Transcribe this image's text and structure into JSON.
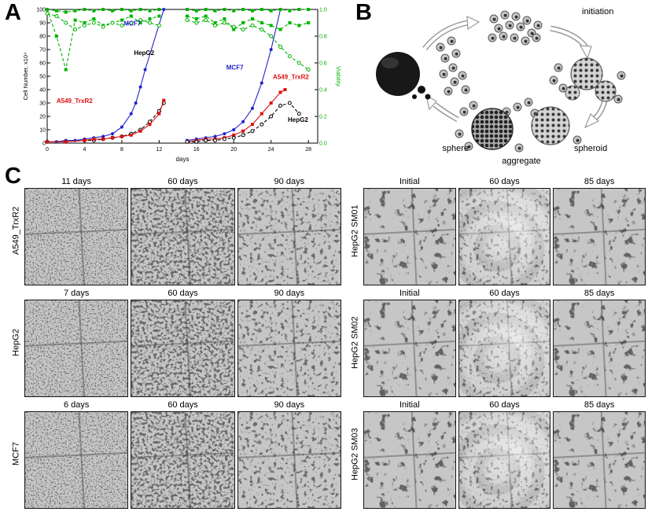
{
  "panels": {
    "a_label": "A",
    "b_label": "B",
    "c_label": "C"
  },
  "chart_data": {
    "type": "line",
    "title": "",
    "xlabel": "days",
    "ylabel_left": "Cell Number, x10⁴",
    "ylabel_right": "Viability",
    "xlim": [
      0,
      29
    ],
    "ylim_left": [
      0,
      100
    ],
    "ylim_right": [
      0,
      1
    ],
    "xticks": [
      0,
      4,
      8,
      12,
      16,
      20,
      24,
      28
    ],
    "yticks_left": [
      0,
      10,
      20,
      30,
      40,
      50,
      60,
      70,
      80,
      90,
      100
    ],
    "yticks_right": [
      "0.0",
      "0.2",
      "0.4",
      "0.6",
      "0.8",
      "1.0"
    ],
    "right_axis_color": "#00b300",
    "grid": false,
    "legend_position": "none",
    "series": [
      {
        "name": "MCF7 cell number (culture 1)",
        "axis": "left",
        "color": "#2222cc",
        "marker": "filled-circle",
        "dash": false,
        "points": [
          [
            0,
            1
          ],
          [
            1,
            1
          ],
          [
            2,
            2
          ],
          [
            3,
            2
          ],
          [
            4,
            3
          ],
          [
            5,
            4
          ],
          [
            6,
            5
          ],
          [
            7,
            7
          ],
          [
            8,
            12
          ],
          [
            9,
            22
          ],
          [
            9.5,
            30
          ],
          [
            10,
            42
          ],
          [
            10.5,
            55
          ],
          [
            12.5,
            100
          ]
        ]
      },
      {
        "name": "HepG2 cell number (culture 1)",
        "axis": "left",
        "color": "#000000",
        "marker": "open-circle",
        "dash": true,
        "points": [
          [
            0,
            1
          ],
          [
            2,
            1
          ],
          [
            4,
            2
          ],
          [
            5,
            2
          ],
          [
            6,
            3
          ],
          [
            7,
            4
          ],
          [
            8,
            5
          ],
          [
            9,
            7
          ],
          [
            10,
            10
          ],
          [
            11,
            16
          ],
          [
            12,
            24
          ],
          [
            12.5,
            30
          ]
        ]
      },
      {
        "name": "A549_TrxR2 cell number (culture 1)",
        "axis": "left",
        "color": "#dd1111",
        "marker": "filled-square",
        "dash": false,
        "points": [
          [
            0,
            1
          ],
          [
            2,
            1
          ],
          [
            4,
            2
          ],
          [
            5,
            3
          ],
          [
            6,
            3
          ],
          [
            7,
            4
          ],
          [
            8,
            5
          ],
          [
            9,
            6
          ],
          [
            10,
            9
          ],
          [
            11,
            14
          ],
          [
            12,
            22
          ],
          [
            12.5,
            32
          ]
        ]
      },
      {
        "name": "MCF7 cell number (culture 2)",
        "axis": "left",
        "color": "#2222cc",
        "marker": "filled-circle",
        "dash": false,
        "points": [
          [
            15,
            2
          ],
          [
            16,
            3
          ],
          [
            17,
            4
          ],
          [
            18,
            5
          ],
          [
            19,
            7
          ],
          [
            20,
            10
          ],
          [
            21,
            16
          ],
          [
            22,
            26
          ],
          [
            23,
            45
          ],
          [
            24,
            70
          ],
          [
            25,
            100
          ]
        ]
      },
      {
        "name": "A549_TrxR2 cell number (culture 2)",
        "axis": "left",
        "color": "#dd1111",
        "marker": "filled-square",
        "dash": false,
        "points": [
          [
            15,
            1
          ],
          [
            16,
            2
          ],
          [
            17,
            3
          ],
          [
            18,
            3
          ],
          [
            19,
            4
          ],
          [
            20,
            6
          ],
          [
            21,
            9
          ],
          [
            22,
            14
          ],
          [
            23,
            22
          ],
          [
            24,
            30
          ],
          [
            25,
            38
          ],
          [
            25.5,
            40
          ]
        ]
      },
      {
        "name": "HepG2 cell number (culture 2)",
        "axis": "left",
        "color": "#000000",
        "marker": "open-circle",
        "dash": true,
        "points": [
          [
            15,
            1
          ],
          [
            16,
            1
          ],
          [
            17,
            2
          ],
          [
            18,
            2
          ],
          [
            19,
            3
          ],
          [
            20,
            4
          ],
          [
            21,
            6
          ],
          [
            22,
            9
          ],
          [
            23,
            14
          ],
          [
            24,
            20
          ],
          [
            25,
            28
          ],
          [
            26,
            30
          ],
          [
            27,
            22
          ]
        ]
      },
      {
        "name": "MCF7 viability (culture 1)",
        "axis": "right",
        "color": "#00b300",
        "marker": "filled-square",
        "dash": true,
        "points": [
          [
            0,
            1
          ],
          [
            1,
            0.99
          ],
          [
            2,
            0.98
          ],
          [
            3,
            0.99
          ],
          [
            4,
            1
          ],
          [
            5,
            0.99
          ],
          [
            6,
            1
          ],
          [
            7,
            0.99
          ],
          [
            8,
            1
          ],
          [
            9,
            0.99
          ],
          [
            10,
            1
          ],
          [
            11,
            0.99
          ],
          [
            12,
            1
          ]
        ]
      },
      {
        "name": "A549_TrxR2 viability (culture 1)",
        "axis": "right",
        "color": "#00b300",
        "marker": "filled-square",
        "dash": true,
        "points": [
          [
            0,
            1
          ],
          [
            1,
            0.8
          ],
          [
            2,
            0.55
          ],
          [
            3,
            0.92
          ],
          [
            4,
            0.9
          ],
          [
            5,
            0.93
          ],
          [
            6,
            0.88
          ],
          [
            7,
            0.9
          ],
          [
            8,
            0.92
          ],
          [
            9,
            0.95
          ],
          [
            10,
            0.9
          ],
          [
            11,
            0.93
          ],
          [
            12,
            0.95
          ]
        ]
      },
      {
        "name": "HepG2 viability (culture 1)",
        "axis": "right",
        "color": "#00b300",
        "marker": "open-circle",
        "dash": true,
        "points": [
          [
            0,
            0.97
          ],
          [
            1,
            0.95
          ],
          [
            2,
            0.9
          ],
          [
            3,
            0.85
          ],
          [
            4,
            0.88
          ],
          [
            5,
            0.9
          ],
          [
            6,
            0.87
          ],
          [
            7,
            0.9
          ],
          [
            8,
            0.88
          ],
          [
            9,
            0.9
          ],
          [
            10,
            0.92
          ],
          [
            11,
            0.9
          ],
          [
            12,
            0.88
          ]
        ]
      },
      {
        "name": "MCF7 viability (culture 2)",
        "axis": "right",
        "color": "#00b300",
        "marker": "filled-square",
        "dash": true,
        "points": [
          [
            15,
            1
          ],
          [
            16,
            0.99
          ],
          [
            17,
            1
          ],
          [
            18,
            0.99
          ],
          [
            19,
            1
          ],
          [
            20,
            0.99
          ],
          [
            21,
            1
          ],
          [
            22,
            0.99
          ],
          [
            23,
            1
          ],
          [
            24,
            0.99
          ],
          [
            25,
            1
          ],
          [
            26,
            0.99
          ],
          [
            27,
            1
          ],
          [
            28,
            1
          ]
        ]
      },
      {
        "name": "A549_TrxR2 viability (culture 2)",
        "axis": "right",
        "color": "#00b300",
        "marker": "filled-square",
        "dash": true,
        "points": [
          [
            15,
            0.95
          ],
          [
            16,
            0.93
          ],
          [
            17,
            0.95
          ],
          [
            18,
            0.9
          ],
          [
            19,
            0.93
          ],
          [
            20,
            0.85
          ],
          [
            21,
            0.9
          ],
          [
            22,
            0.93
          ],
          [
            23,
            0.9
          ],
          [
            24,
            0.88
          ],
          [
            25,
            0.85
          ],
          [
            26,
            0.9
          ],
          [
            27,
            0.88
          ],
          [
            28,
            0.9
          ]
        ]
      },
      {
        "name": "HepG2 viability (culture 2)",
        "axis": "right",
        "color": "#00b300",
        "marker": "open-circle",
        "dash": true,
        "points": [
          [
            15,
            0.92
          ],
          [
            16,
            0.9
          ],
          [
            17,
            0.92
          ],
          [
            18,
            0.88
          ],
          [
            19,
            0.9
          ],
          [
            20,
            0.87
          ],
          [
            21,
            0.85
          ],
          [
            22,
            0.88
          ],
          [
            23,
            0.85
          ],
          [
            24,
            0.8
          ],
          [
            25,
            0.72
          ],
          [
            26,
            0.65
          ],
          [
            27,
            0.6
          ],
          [
            28,
            0.55
          ]
        ]
      }
    ],
    "annotations": [
      {
        "text": "MCF7",
        "color": "#2222cc",
        "x": 8.2,
        "y": 88
      },
      {
        "text": "HepG2",
        "color": "#000000",
        "x": 9.3,
        "y": 66
      },
      {
        "text": "A549_TrxR2",
        "color": "#dd1111",
        "x": 1.0,
        "y": 30
      },
      {
        "text": "MCF7",
        "color": "#2222cc",
        "x": 19.2,
        "y": 55
      },
      {
        "text": "A549_TrxR2",
        "color": "#dd1111",
        "x": 24.2,
        "y": 48
      },
      {
        "text": "HepG2",
        "color": "#000000",
        "x": 25.8,
        "y": 16
      }
    ]
  },
  "diagram": {
    "labels": {
      "initiation": "initiation",
      "sphere": "sphere",
      "aggregate": "aggregate",
      "spheroid": "spheroid"
    }
  },
  "micrographs": {
    "left_block": {
      "rows": [
        {
          "row_label": "A549_TrxR2",
          "columns": [
            "11 days",
            "60 days",
            "90 days"
          ]
        },
        {
          "row_label": "HepG2",
          "columns": [
            "7 days",
            "60 days",
            "90 days"
          ]
        },
        {
          "row_label": "MCF7",
          "columns": [
            "6 days",
            "60 days",
            "90 days"
          ]
        }
      ]
    },
    "right_block": {
      "rows": [
        {
          "row_label": "HepG2 SM01",
          "columns": [
            "Initial",
            "60 days",
            "85 days"
          ]
        },
        {
          "row_label": "HepG2 SM02",
          "columns": [
            "Initial",
            "60 days",
            "85 days"
          ]
        },
        {
          "row_label": "HepG2 SM03",
          "columns": [
            "Initial",
            "60 days",
            "85 days"
          ]
        }
      ]
    }
  }
}
